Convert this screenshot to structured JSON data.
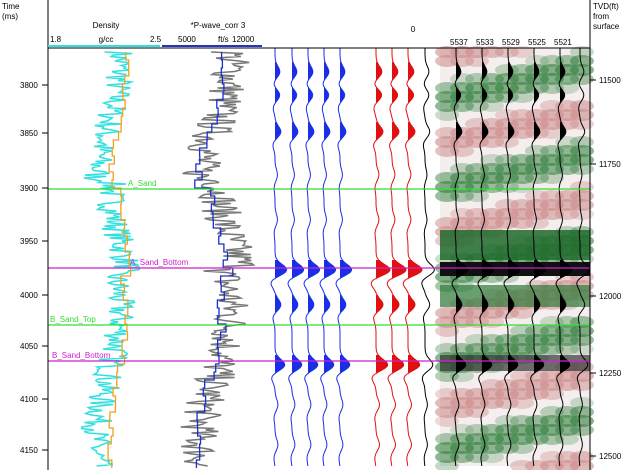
{
  "header": {
    "time_label": "Time",
    "time_unit": "(ms)",
    "density": {
      "name": "Density",
      "unit": "g/cc",
      "min": "1.8",
      "max": "2.5"
    },
    "pwave": {
      "name": "*P-wave_corr 3",
      "min": "5000",
      "unit": "ft/s",
      "max": "12000"
    },
    "synthetic_label": "0",
    "traces": [
      "5537",
      "5533",
      "5529",
      "5525",
      "5521"
    ],
    "depth_label": "TVD(ft)",
    "depth_from": "from",
    "depth_ref": "surface"
  },
  "time_ticks": [
    "3800",
    "3850",
    "3900",
    "3950",
    "4000",
    "4050",
    "4100",
    "4150"
  ],
  "depth_ticks": [
    "11500",
    "11750",
    "12000",
    "12250",
    "12500"
  ],
  "horizons": [
    {
      "label": "A_Sand",
      "color": "#33dd33"
    },
    {
      "label": "A_Sand_Bottom",
      "color": "#cc22cc"
    },
    {
      "label": "B_Sand_Top",
      "color": "#33dd33"
    },
    {
      "label": "B_Sand_Bottom",
      "color": "#cc22cc"
    }
  ]
}
